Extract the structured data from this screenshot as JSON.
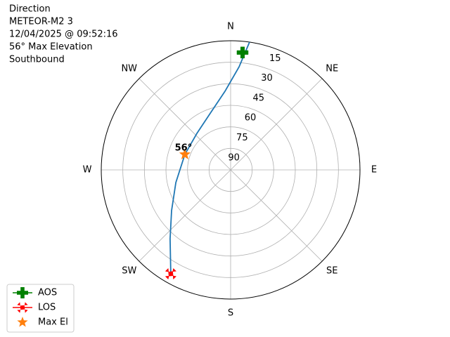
{
  "chart_data": {
    "type": "polar",
    "title_lines": [
      "Direction",
      "METEOR-M2 3",
      "12/04/2025 @ 09:52:16",
      "56° Max Elevation",
      "Southbound"
    ],
    "rlim": [
      90,
      0
    ],
    "rticks": [
      15,
      30,
      45,
      60,
      75,
      90
    ],
    "theta_ticks": [
      {
        "value": 0,
        "label": "N"
      },
      {
        "value": 45,
        "label": "NE"
      },
      {
        "value": 90,
        "label": "E"
      },
      {
        "value": 135,
        "label": "SE"
      },
      {
        "value": 180,
        "label": "S"
      },
      {
        "value": 225,
        "label": "SW"
      },
      {
        "value": 270,
        "label": "W"
      },
      {
        "value": 315,
        "label": "NW"
      }
    ],
    "grid": true,
    "track": {
      "color": "#1f77b4",
      "azimuth": [
        8.4,
        4.7,
        355.9,
        341.1,
        317.3,
        288.7,
        257,
        235.4,
        221.3,
        209.9
      ],
      "elevation": [
        0,
        17.9,
        35.1,
        47.6,
        55.4,
        56.4,
        50.9,
        40.1,
        26.2,
        6.5
      ]
    },
    "series": [
      {
        "name": "AOS",
        "color": "#008000",
        "marker": "plus",
        "azimuth": [
          5.8
        ],
        "elevation": [
          7.8
        ]
      },
      {
        "name": "LOS",
        "color": "#ff0000",
        "marker": "x",
        "azimuth": [
          209.9
        ],
        "elevation": [
          6.5
        ]
      },
      {
        "name": "Max El",
        "color": "#ff7f0e",
        "marker": "star",
        "azimuth": [
          288.7
        ],
        "elevation": [
          56.4
        ]
      }
    ],
    "annotations": [
      {
        "text": "56°",
        "azimuth": 288.7,
        "elevation": 56.4
      }
    ],
    "legend": "lower left"
  }
}
